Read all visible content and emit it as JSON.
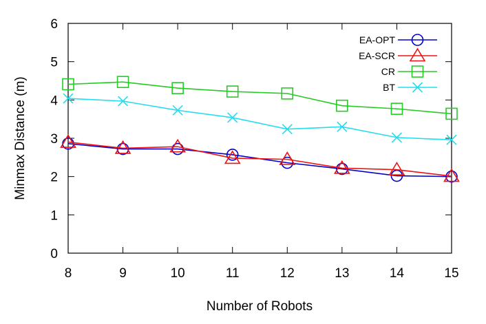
{
  "chart_data": {
    "type": "line",
    "xlabel": "Number of Robots",
    "ylabel": "Minmax Distance (m)",
    "x": [
      8,
      9,
      10,
      11,
      12,
      13,
      14,
      15
    ],
    "xlim": [
      8,
      15
    ],
    "ylim": [
      0,
      6
    ],
    "xticks": [
      "8",
      "9",
      "10",
      "11",
      "12",
      "13",
      "14",
      "15"
    ],
    "yticks": [
      "0",
      "1",
      "2",
      "3",
      "4",
      "5",
      "6"
    ],
    "grid": false,
    "legend_position": "top-right",
    "series": [
      {
        "name": "EA-OPT",
        "marker": "circle",
        "color": "#0000cc",
        "values": [
          2.86,
          2.72,
          2.72,
          2.57,
          2.36,
          2.2,
          2.02,
          2.0
        ]
      },
      {
        "name": "EA-SCR",
        "marker": "triangle",
        "color": "#ee1111",
        "values": [
          2.9,
          2.74,
          2.78,
          2.48,
          2.45,
          2.22,
          2.18,
          2.01
        ]
      },
      {
        "name": "CR",
        "marker": "square",
        "color": "#22cc22",
        "values": [
          4.41,
          4.47,
          4.31,
          4.22,
          4.17,
          3.85,
          3.77,
          3.64
        ]
      },
      {
        "name": "BT",
        "marker": "x",
        "color": "#22ddee",
        "values": [
          4.04,
          3.97,
          3.73,
          3.54,
          3.24,
          3.3,
          3.02,
          2.96
        ]
      }
    ]
  }
}
